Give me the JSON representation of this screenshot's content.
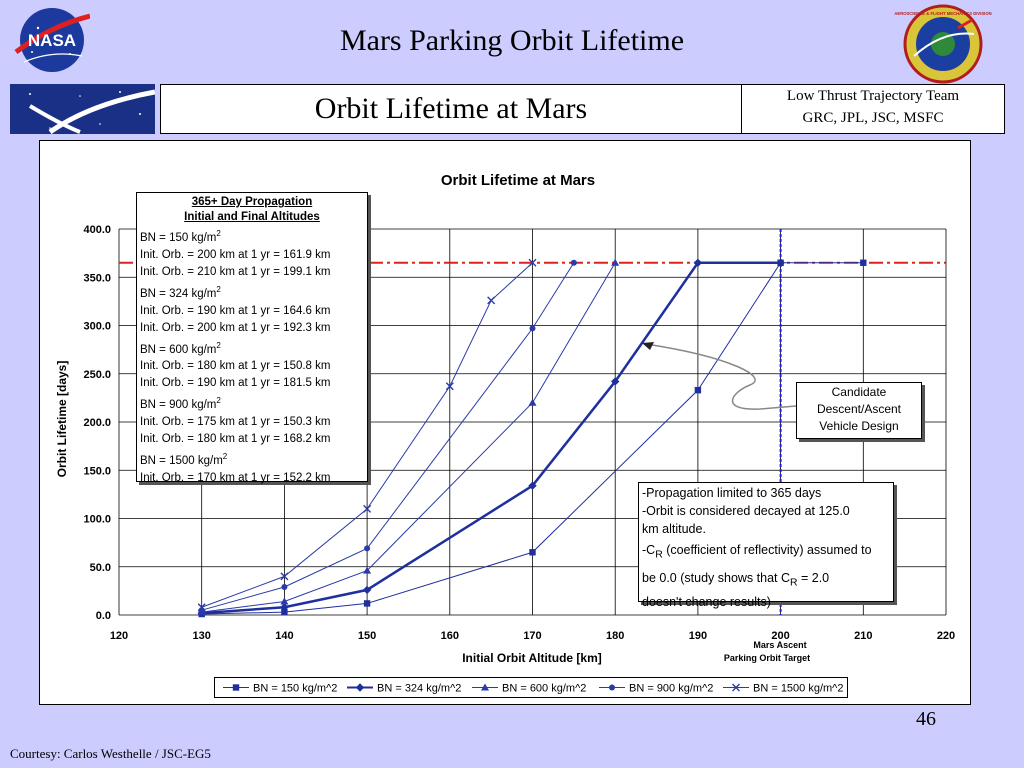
{
  "slide": {
    "title": "Mars Parking Orbit Lifetime",
    "subtitle": "Orbit Lifetime at Mars",
    "team_line1": "Low Thrust Trajectory Team",
    "team_line2": "GRC, JPL, JSC, MSFC",
    "page_number": "46",
    "courtesy": "Courtesy:  Carlos Westhelle / JSC-EG5",
    "logo_left_text": "NASA",
    "logo_right_text": "AEROSCIENCE & FLIGHT MECHANICS DIVISION"
  },
  "chart_data": {
    "type": "line",
    "title": "Orbit Lifetime at Mars",
    "xlabel": "Initial Orbit Altitude [km]",
    "ylabel": "Orbit Lifetime [days]",
    "xlim": [
      120,
      220
    ],
    "ylim": [
      0,
      400
    ],
    "x_ticks": [
      "120",
      "130",
      "140",
      "150",
      "160",
      "170",
      "180",
      "190",
      "200",
      "210",
      "220"
    ],
    "y_ticks": [
      "0.0",
      "50.0",
      "100.0",
      "150.0",
      "200.0",
      "250.0",
      "300.0",
      "350.0",
      "400.0"
    ],
    "grid": true,
    "legend_position": "bottom",
    "reference_line_y": 365,
    "reference_line_x": 200,
    "x_annotation": "Mars Ascent",
    "x_annotation_2": "Parking Orbit Target",
    "series": [
      {
        "name": "BN = 150 kg/m^2",
        "marker": "square",
        "color": "#1f2f9e",
        "width": 1,
        "x": [
          130,
          140,
          150,
          170,
          190,
          200,
          210
        ],
        "y": [
          1,
          3,
          12,
          65,
          233,
          365,
          365
        ]
      },
      {
        "name": "BN = 324 kg/m^2",
        "marker": "diamond",
        "color": "#1f2f9e",
        "width": 2.5,
        "x": [
          130,
          140,
          150,
          170,
          180,
          190,
          200
        ],
        "y": [
          2,
          8,
          26,
          134,
          242,
          365,
          365
        ]
      },
      {
        "name": "BN = 600 kg/m^2",
        "marker": "triangle",
        "color": "#2a3aa8",
        "width": 1,
        "x": [
          130,
          140,
          150,
          170,
          180
        ],
        "y": [
          3,
          14,
          46,
          220,
          365
        ]
      },
      {
        "name": "BN = 900 kg/m^2",
        "marker": "circle",
        "color": "#2a3aa8",
        "width": 1,
        "x": [
          130,
          140,
          150,
          170,
          175
        ],
        "y": [
          5,
          29,
          69,
          297,
          365
        ]
      },
      {
        "name": "BN = 1500 kg/m^2",
        "marker": "x",
        "color": "#2a3aa8",
        "width": 1,
        "x": [
          130,
          140,
          150,
          160,
          165,
          170
        ],
        "y": [
          8,
          40,
          110,
          237,
          326,
          365
        ]
      }
    ]
  },
  "info_box": {
    "header1": "365+ Day Propagation",
    "header2": "Initial and Final Altitudes",
    "lines": [
      {
        "text": "BN = 150 kg/m",
        "sup": "2"
      },
      {
        "text": "Init. Orb. = 200 km at 1 yr = 161.9 km",
        "sup": ""
      },
      {
        "text": "Init. Orb. = 210 km at 1 yr = 199.1 km",
        "sup": ""
      },
      {
        "text": "BN = 324 kg/m",
        "sup": "2"
      },
      {
        "text": "Init. Orb. = 190 km at 1 yr = 164.6 km",
        "sup": ""
      },
      {
        "text": "Init. Orb. = 200 km at 1 yr = 192.3 km",
        "sup": ""
      },
      {
        "text": "BN = 600 kg/m",
        "sup": "2"
      },
      {
        "text": "Init. Orb. = 180 km at 1 yr = 150.8 km",
        "sup": ""
      },
      {
        "text": "Init. Orb. = 190 km at 1 yr = 181.5 km",
        "sup": ""
      },
      {
        "text": "BN = 900 kg/m",
        "sup": "2"
      },
      {
        "text": "Init. Orb. = 175 km at 1 yr = 150.3 km",
        "sup": ""
      },
      {
        "text": "Init. Orb. = 180 km at 1 yr = 168.2 km",
        "sup": ""
      },
      {
        "text": "BN = 1500 kg/m",
        "sup": "2"
      },
      {
        "text": "Init. Orb. = 170 km at 1 yr = 152.2 km",
        "sup": ""
      }
    ]
  },
  "candidate_box": {
    "line1": "Candidate",
    "line2": "Descent/Ascent",
    "line3": "Vehicle Design"
  },
  "prop_box": {
    "line1": "-Propagation limited to 365 days",
    "line2": "-Orbit is considered decayed at 125.0",
    "line3": "km altitude.",
    "line4_pre": "-C",
    "line4_sub": "R",
    "line4_post": " (coefficient of reflectivity) assumed to",
    "line5_pre": "be 0.0 (study shows that C",
    "line5_sub": "R",
    "line5_post": " = 2.0",
    "line6": "doesn't change results)"
  }
}
